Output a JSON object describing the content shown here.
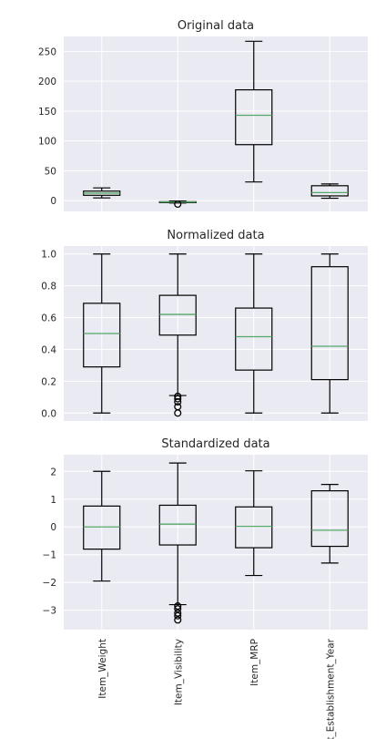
{
  "chart_data": [
    {
      "type": "box",
      "title": "Original data",
      "categories": [
        "Item_Weight",
        "Item_Visibility",
        "Item_MRP",
        "Outlet_Establishment_Year"
      ],
      "ylim": [
        -18,
        275
      ],
      "yticks": [
        0,
        50,
        100,
        150,
        200,
        250
      ],
      "grid": true,
      "boxes": [
        {
          "whislo": 4.6,
          "q1": 9.0,
          "med": 12.6,
          "q3": 16.0,
          "whishi": 21.4,
          "fliers": []
        },
        {
          "whislo": -4.0,
          "q1": -2.6,
          "med": -2.3,
          "q3": -1.8,
          "whishi": -0.6,
          "fliers": [
            -5.8
          ]
        },
        {
          "whislo": 31.3,
          "q1": 93.8,
          "med": 143.0,
          "q3": 185.6,
          "whishi": 266.9,
          "fliers": []
        },
        {
          "whislo": 4.0,
          "q1": 8.0,
          "med": 13.5,
          "q3": 25.0,
          "whishi": 28.0,
          "fliers": []
        }
      ]
    },
    {
      "type": "box",
      "title": "Normalized data",
      "categories": [
        "Item_Weight",
        "Item_Visibility",
        "Item_MRP",
        "Outlet_Establishment_Year"
      ],
      "ylim": [
        -0.05,
        1.05
      ],
      "yticks": [
        0.0,
        0.2,
        0.4,
        0.6,
        0.8,
        1.0
      ],
      "grid": true,
      "boxes": [
        {
          "whislo": 0.0,
          "q1": 0.29,
          "med": 0.5,
          "q3": 0.69,
          "whishi": 1.0,
          "fliers": []
        },
        {
          "whislo": 0.11,
          "q1": 0.49,
          "med": 0.62,
          "q3": 0.74,
          "whishi": 1.0,
          "fliers": [
            0.0,
            0.04,
            0.07,
            0.09,
            0.105
          ]
        },
        {
          "whislo": 0.0,
          "q1": 0.27,
          "med": 0.48,
          "q3": 0.66,
          "whishi": 1.0,
          "fliers": []
        },
        {
          "whislo": 0.0,
          "q1": 0.21,
          "med": 0.42,
          "q3": 0.92,
          "whishi": 1.0,
          "fliers": []
        }
      ]
    },
    {
      "type": "box",
      "title": "Standardized data",
      "categories": [
        "Item_Weight",
        "Item_Visibility",
        "Item_MRP",
        "Outlet_Establishment_Year"
      ],
      "ylim": [
        -3.7,
        2.6
      ],
      "yticks": [
        -3,
        -2,
        -1,
        0,
        1,
        2
      ],
      "grid": true,
      "boxes": [
        {
          "whislo": -1.95,
          "q1": -0.8,
          "med": 0.0,
          "q3": 0.75,
          "whishi": 2.0,
          "fliers": []
        },
        {
          "whislo": -2.8,
          "q1": -0.65,
          "med": 0.1,
          "q3": 0.78,
          "whishi": 2.3,
          "fliers": [
            -2.85,
            -2.95,
            -3.1,
            -3.2,
            -3.35
          ]
        },
        {
          "whislo": -1.75,
          "q1": -0.75,
          "med": 0.02,
          "q3": 0.72,
          "whishi": 2.02,
          "fliers": []
        },
        {
          "whislo": -1.3,
          "q1": -0.7,
          "med": -0.12,
          "q3": 1.3,
          "whishi": 1.53,
          "fliers": []
        }
      ]
    }
  ],
  "colors": {
    "plot_bg": "#eaeaf2",
    "grid": "#ffffff",
    "box": "#000000",
    "median": "#55a868"
  }
}
